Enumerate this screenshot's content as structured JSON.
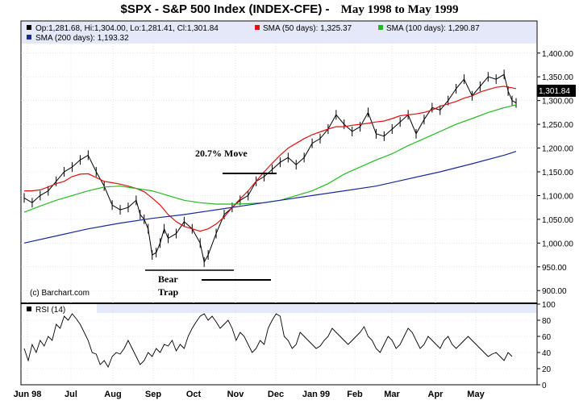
{
  "chart_data": {
    "type": "line",
    "title": "$SPX - S&P 500 Index (INDEX-CFE) -",
    "date_range": "May 1998 to May 1999",
    "months": [
      "Jun 98",
      "Jul",
      "Aug",
      "Sep",
      "Oct",
      "Nov",
      "Dec",
      "Jan 99",
      "Feb",
      "Mar",
      "Apr",
      "May"
    ],
    "price_axis": {
      "ylim": [
        880,
        1420
      ],
      "ticks": [
        "1,400.00",
        "1,350.00",
        "1,300.00",
        "1,250.00",
        "1,200.00",
        "1,150.00",
        "1,100.00",
        "1,050.00",
        "1,000.00",
        "950.00",
        "900.00"
      ],
      "tick_values": [
        1400,
        1350,
        1300,
        1250,
        1200,
        1150,
        1100,
        1050,
        1000,
        950,
        900
      ]
    },
    "legend": {
      "ohlc": "Op:1,281.68, Hi:1,304.00, Lo:1,281.41, Cl:1,301.84",
      "sma50": "SMA (50 days): 1,325.37",
      "sma100": "SMA (100 days): 1,290.87",
      "sma200": "SMA (200 days): 1,193.32"
    },
    "last_price_label": "1,301.84",
    "series": [
      {
        "name": "$SPX",
        "color": "#000000",
        "x": [
          0,
          10,
          20,
          30,
          40,
          50,
          60,
          70,
          80,
          90,
          100,
          110,
          120,
          130,
          140,
          145,
          150,
          155,
          160,
          165,
          170,
          175,
          180,
          190,
          200,
          210,
          220,
          225,
          230,
          240,
          250,
          260,
          270,
          280,
          290,
          300,
          310,
          320,
          330,
          340,
          350,
          360,
          370,
          380,
          390,
          400,
          410,
          420,
          430,
          440,
          450,
          460,
          470,
          480,
          490,
          500,
          510,
          520,
          530,
          540,
          550,
          560,
          570,
          580,
          590,
          600,
          605,
          610,
          615
        ],
        "values": [
          1095,
          1085,
          1100,
          1110,
          1130,
          1150,
          1160,
          1175,
          1185,
          1150,
          1120,
          1080,
          1070,
          1075,
          1090,
          1060,
          1050,
          1030,
          975,
          980,
          1000,
          1030,
          1010,
          1020,
          1045,
          1030,
          1000,
          960,
          975,
          1020,
          1060,
          1075,
          1090,
          1100,
          1130,
          1140,
          1155,
          1170,
          1180,
          1165,
          1180,
          1210,
          1220,
          1240,
          1270,
          1250,
          1235,
          1245,
          1275,
          1230,
          1225,
          1240,
          1255,
          1270,
          1230,
          1260,
          1285,
          1280,
          1300,
          1325,
          1345,
          1310,
          1330,
          1350,
          1345,
          1355,
          1320,
          1300,
          1295
        ]
      },
      {
        "name": "SMA (50 days)",
        "color": "#dd1111",
        "x": [
          0,
          10,
          20,
          30,
          40,
          50,
          60,
          70,
          80,
          90,
          100,
          110,
          120,
          130,
          140,
          150,
          160,
          170,
          180,
          190,
          200,
          210,
          220,
          230,
          240,
          250,
          260,
          270,
          280,
          290,
          300,
          310,
          320,
          330,
          340,
          350,
          360,
          370,
          380,
          390,
          400,
          410,
          420,
          430,
          440,
          450,
          460,
          470,
          480,
          490,
          500,
          510,
          520,
          530,
          540,
          550,
          560,
          570,
          580,
          590,
          600,
          605,
          610,
          615
        ],
        "values": [
          1110,
          1110,
          1112,
          1118,
          1125,
          1130,
          1140,
          1145,
          1146,
          1138,
          1130,
          1127,
          1124,
          1120,
          1115,
          1108,
          1095,
          1080,
          1060,
          1045,
          1035,
          1030,
          1025,
          1030,
          1040,
          1055,
          1075,
          1093,
          1110,
          1130,
          1150,
          1168,
          1185,
          1200,
          1210,
          1220,
          1228,
          1234,
          1240,
          1245,
          1245,
          1248,
          1250,
          1252,
          1255,
          1257,
          1262,
          1268,
          1270,
          1272,
          1275,
          1280,
          1288,
          1293,
          1298,
          1305,
          1310,
          1318,
          1323,
          1328,
          1330,
          1328,
          1327,
          1325
        ]
      },
      {
        "name": "SMA (100 days)",
        "color": "#22bb22",
        "x": [
          0,
          20,
          40,
          60,
          80,
          100,
          120,
          140,
          160,
          180,
          200,
          220,
          240,
          260,
          280,
          300,
          320,
          340,
          360,
          380,
          400,
          420,
          440,
          460,
          480,
          500,
          520,
          540,
          560,
          580,
          600,
          615
        ],
        "values": [
          1065,
          1078,
          1090,
          1100,
          1110,
          1118,
          1120,
          1115,
          1110,
          1100,
          1090,
          1085,
          1082,
          1082,
          1083,
          1085,
          1090,
          1100,
          1110,
          1125,
          1145,
          1160,
          1175,
          1188,
          1205,
          1220,
          1235,
          1250,
          1262,
          1275,
          1285,
          1291
        ]
      },
      {
        "name": "SMA (200 days)",
        "color": "#1a2a99",
        "x": [
          0,
          40,
          80,
          120,
          160,
          200,
          240,
          280,
          320,
          360,
          400,
          440,
          480,
          520,
          560,
          600,
          615
        ],
        "values": [
          1000,
          1015,
          1030,
          1042,
          1052,
          1060,
          1070,
          1080,
          1090,
          1100,
          1110,
          1120,
          1135,
          1150,
          1167,
          1185,
          1193
        ]
      }
    ],
    "annotations": {
      "move": "20.7% Move",
      "trap_line1": "Bear",
      "trap_line2": "Trap",
      "credit": "(c) Barchart.com"
    },
    "rsi": {
      "label": "RSI (14)",
      "ylim": [
        0,
        100
      ],
      "ticks": [
        "100",
        "80",
        "60",
        "40",
        "20",
        "0"
      ],
      "tick_values": [
        100,
        80,
        60,
        40,
        20,
        0
      ],
      "x": [
        0,
        5,
        10,
        15,
        20,
        25,
        30,
        35,
        40,
        45,
        50,
        55,
        60,
        65,
        70,
        75,
        80,
        85,
        90,
        95,
        100,
        105,
        110,
        115,
        120,
        125,
        130,
        135,
        140,
        145,
        150,
        155,
        160,
        165,
        170,
        175,
        180,
        185,
        190,
        195,
        200,
        205,
        210,
        215,
        220,
        225,
        230,
        235,
        240,
        245,
        250,
        255,
        260,
        265,
        270,
        275,
        280,
        285,
        290,
        295,
        300,
        305,
        310,
        315,
        320,
        325,
        330,
        335,
        340,
        345,
        350,
        355,
        360,
        365,
        370,
        375,
        380,
        385,
        390,
        395,
        400,
        405,
        410,
        415,
        420,
        425,
        430,
        435,
        440,
        445,
        450,
        455,
        460,
        465,
        470,
        475,
        480,
        485,
        490,
        495,
        500,
        505,
        510,
        515,
        520,
        525,
        530,
        535,
        540,
        545,
        550,
        555,
        560,
        565,
        570,
        575,
        580,
        585,
        590,
        595,
        600,
        605,
        610
      ],
      "values": [
        45,
        30,
        50,
        40,
        55,
        48,
        60,
        55,
        75,
        70,
        85,
        80,
        88,
        82,
        75,
        65,
        55,
        40,
        38,
        25,
        30,
        22,
        35,
        40,
        38,
        45,
        55,
        45,
        35,
        25,
        30,
        40,
        35,
        45,
        40,
        50,
        48,
        55,
        42,
        50,
        45,
        60,
        70,
        78,
        85,
        88,
        80,
        85,
        78,
        70,
        75,
        80,
        70,
        55,
        65,
        60,
        50,
        40,
        45,
        55,
        50,
        70,
        80,
        88,
        85,
        60,
        55,
        45,
        50,
        65,
        60,
        55,
        50,
        45,
        48,
        55,
        60,
        70,
        65,
        60,
        55,
        50,
        55,
        60,
        65,
        72,
        60,
        55,
        45,
        40,
        50,
        60,
        55,
        45,
        50,
        60,
        70,
        65,
        55,
        45,
        50,
        60,
        55,
        50,
        45,
        55,
        60,
        50,
        45,
        50,
        55,
        60,
        55,
        50,
        45,
        40,
        35,
        38,
        40,
        35,
        30,
        40,
        35
      ]
    }
  }
}
